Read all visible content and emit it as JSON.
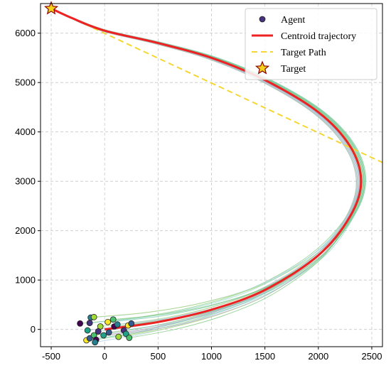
{
  "chart_data": {
    "type": "line",
    "title": "",
    "xlabel": "",
    "ylabel": "",
    "xlim": [
      -600,
      2600
    ],
    "ylim": [
      -350,
      6600
    ],
    "grid": true,
    "legend_position": "top-right",
    "x_ticks": [
      -500,
      0,
      500,
      1000,
      1500,
      2000,
      2500
    ],
    "y_ticks": [
      0,
      1000,
      2000,
      3000,
      4000,
      5000,
      6000
    ],
    "legend": [
      {
        "label": "Agent",
        "kind": "marker"
      },
      {
        "label": "Centroid trajectory",
        "kind": "line"
      },
      {
        "label": "Target Path",
        "kind": "dashed-line"
      },
      {
        "label": "Target",
        "kind": "star"
      }
    ],
    "target": {
      "x": -500,
      "y": 6500
    },
    "target_path": {
      "points": [
        {
          "x": -500,
          "y": 6500
        },
        {
          "x": 2600,
          "y": 3380
        }
      ]
    },
    "centroid_trajectory": {
      "points": [
        {
          "x": 0,
          "y": 0
        },
        {
          "x": 500,
          "y": 150
        },
        {
          "x": 1000,
          "y": 400
        },
        {
          "x": 1500,
          "y": 800
        },
        {
          "x": 2000,
          "y": 1500
        },
        {
          "x": 2300,
          "y": 2300
        },
        {
          "x": 2400,
          "y": 3000
        },
        {
          "x": 2300,
          "y": 3700
        },
        {
          "x": 2000,
          "y": 4400
        },
        {
          "x": 1500,
          "y": 5050
        },
        {
          "x": 1000,
          "y": 5500
        },
        {
          "x": 500,
          "y": 5800
        },
        {
          "x": 0,
          "y": 6050
        },
        {
          "x": -300,
          "y": 6300
        },
        {
          "x": -500,
          "y": 6500
        }
      ]
    },
    "agents": [
      {
        "x": -230,
        "y": 120
      },
      {
        "x": -130,
        "y": 240
      },
      {
        "x": -100,
        "y": 250
      },
      {
        "x": -140,
        "y": 130
      },
      {
        "x": -160,
        "y": -20
      },
      {
        "x": -170,
        "y": -220
      },
      {
        "x": -140,
        "y": -180
      },
      {
        "x": -100,
        "y": -120
      },
      {
        "x": -80,
        "y": -210
      },
      {
        "x": -90,
        "y": -260
      },
      {
        "x": -40,
        "y": 60
      },
      {
        "x": -60,
        "y": -40
      },
      {
        "x": -10,
        "y": -120
      },
      {
        "x": 30,
        "y": 150
      },
      {
        "x": 40,
        "y": -60
      },
      {
        "x": 80,
        "y": 200
      },
      {
        "x": 90,
        "y": 60
      },
      {
        "x": 120,
        "y": 100
      },
      {
        "x": 130,
        "y": -150
      },
      {
        "x": 180,
        "y": -20
      },
      {
        "x": 200,
        "y": -90
      },
      {
        "x": 220,
        "y": 80
      },
      {
        "x": 250,
        "y": 120
      },
      {
        "x": 230,
        "y": -170
      }
    ]
  },
  "colors": {
    "centroid": "#ee2222",
    "target_path": "#f5d633",
    "target_fill": "#f2d21c",
    "target_edge": "#8b0000",
    "grid": "#c8c8c8",
    "agent_palette": [
      "#440154",
      "#46327e",
      "#365c8d",
      "#277f8e",
      "#1fa187",
      "#4ac16d",
      "#a0da39",
      "#fde725"
    ],
    "trajectory_palette": [
      "#7fc97f",
      "#9ecae1",
      "#a6d96a",
      "#8dd3c7",
      "#b3a2c7",
      "#66c2a5",
      "#bdbdbd",
      "#74c476"
    ]
  }
}
